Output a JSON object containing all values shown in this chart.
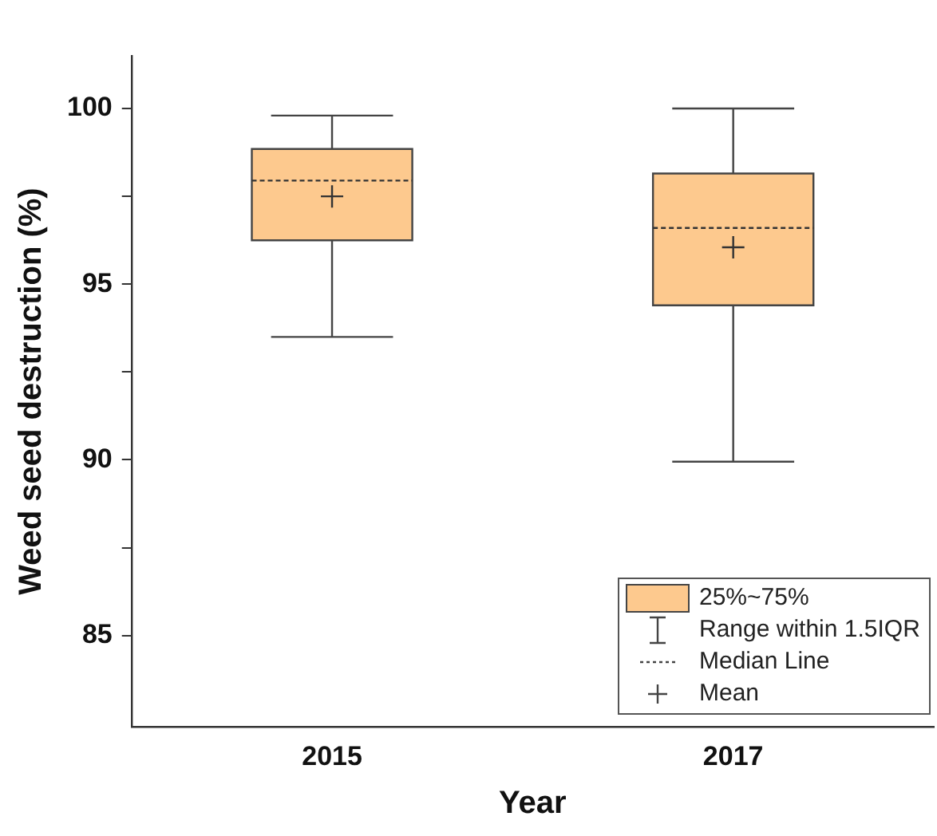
{
  "chart_data": {
    "type": "box",
    "xlabel": "Year",
    "ylabel": "Weed seed destruction (%)",
    "categories": [
      "2015",
      "2017"
    ],
    "series": [
      {
        "name": "25%~75%",
        "color": "#fdc98e",
        "boxes": [
          {
            "low": 93.5,
            "q1": 96.25,
            "median": 97.95,
            "q3": 98.85,
            "high": 99.8,
            "mean": 97.5
          },
          {
            "low": 89.95,
            "q1": 94.4,
            "median": 96.6,
            "q3": 98.15,
            "high": 100,
            "mean": 96.05
          }
        ]
      }
    ],
    "ylim": [
      82.4,
      101.5
    ],
    "yticks": [
      85,
      90,
      95,
      100
    ],
    "legend": "bottom right",
    "grid": false,
    "annotations": [
      "Range within 1.5IQR",
      "Median Line",
      "Mean"
    ]
  }
}
